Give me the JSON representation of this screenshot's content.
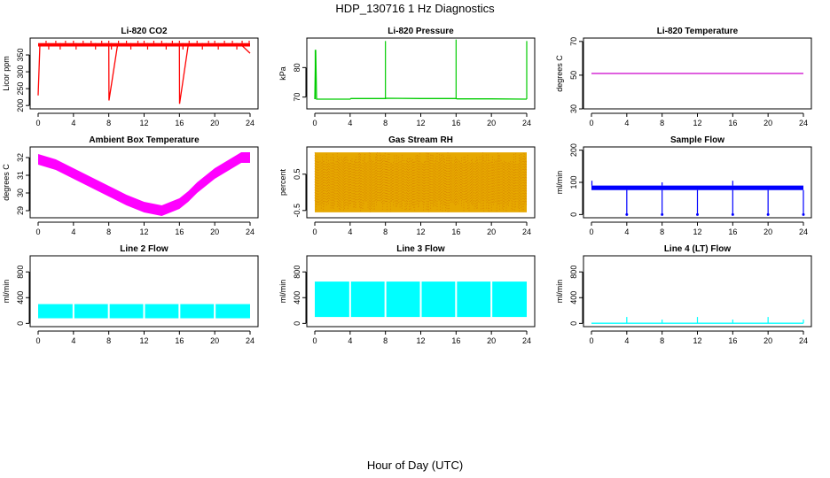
{
  "page": {
    "title": "HDP_130716  1 Hz Diagnostics",
    "xlabel": "Hour of Day (UTC)"
  },
  "chart_data": [
    {
      "type": "line",
      "title": "Li-820 CO2",
      "ylabel": "Licor ppm",
      "xlim": [
        0,
        24
      ],
      "ylim": [
        190,
        400
      ],
      "xticks": [
        0,
        4,
        8,
        12,
        16,
        20,
        24
      ],
      "yticks": [
        200,
        250,
        300,
        350
      ],
      "color": "#ff0000",
      "band": {
        "low": 375,
        "high": 385
      },
      "x": [
        0.0,
        0.2,
        1.0,
        2.0,
        3.0,
        4.0,
        5.0,
        6.0,
        7.0,
        8.0,
        8.02,
        9.0,
        10.0,
        11.0,
        12.0,
        13.0,
        14.0,
        15.0,
        16.0,
        16.02,
        17.0,
        18.0,
        19.0,
        20.0,
        21.0,
        22.0,
        23.0,
        24.0
      ],
      "y": [
        230,
        380,
        380,
        379,
        380,
        380,
        379,
        380,
        380,
        379,
        215,
        380,
        380,
        379,
        380,
        380,
        379,
        380,
        379,
        205,
        380,
        380,
        379,
        380,
        380,
        379,
        380,
        355
      ],
      "spikes_up": {
        "x": [
          0.9,
          1.2,
          2.0,
          2.5,
          3.1,
          4.0,
          4.3,
          5.1,
          6.0,
          6.5,
          7.2,
          8.0,
          8.3,
          9.1,
          10.0,
          10.5,
          11.3,
          12.0,
          12.4,
          13.1,
          14.0,
          14.5,
          15.2,
          16.0,
          16.4,
          17.1,
          18.0,
          18.6,
          19.3,
          20.0,
          20.4,
          21.1,
          22.0,
          22.5,
          23.1,
          23.9
        ],
        "y": [
          392,
          366,
          392,
          366,
          392,
          392,
          366,
          392,
          392,
          366,
          392,
          392,
          366,
          392,
          392,
          366,
          392,
          392,
          366,
          392,
          392,
          366,
          392,
          392,
          366,
          392,
          392,
          366,
          392,
          392,
          366,
          392,
          392,
          366,
          392,
          392
        ]
      }
    },
    {
      "type": "line",
      "title": "Li-820 Pressure",
      "ylabel": "kPa",
      "xlim": [
        0,
        24
      ],
      "ylim": [
        66,
        90
      ],
      "xticks": [
        0,
        4,
        8,
        12,
        16,
        20,
        24
      ],
      "yticks": [
        70,
        80
      ],
      "color": "#00cc00",
      "x": [
        0.0,
        0.1,
        0.2,
        4.0,
        4.1,
        8.0,
        8.1,
        12.0,
        16.0,
        16.1,
        20.0,
        23.9,
        24.0
      ],
      "y": [
        69.3,
        86,
        69.3,
        69.3,
        69.5,
        69.5,
        69.6,
        69.5,
        69.5,
        69.4,
        69.4,
        69.3,
        69.3
      ],
      "spikes_up": {
        "x": [
          0.05,
          8.0,
          16.0,
          24.0
        ],
        "y": [
          86,
          89,
          89.5,
          89
        ]
      }
    },
    {
      "type": "line",
      "title": "Li-820 Temperature",
      "ylabel": "degrees C",
      "xlim": [
        0,
        24
      ],
      "ylim": [
        30,
        72
      ],
      "xticks": [
        0,
        4,
        8,
        12,
        16,
        20,
        24
      ],
      "yticks": [
        30,
        50,
        70
      ],
      "color": "#cc00cc",
      "x": [
        0,
        24
      ],
      "y": [
        51,
        51
      ]
    },
    {
      "type": "line",
      "title": "Ambient Box Temperature",
      "ylabel": "degrees C",
      "xlim": [
        0,
        24
      ],
      "ylim": [
        28.6,
        32.6
      ],
      "xticks": [
        0,
        4,
        8,
        12,
        16,
        20,
        24
      ],
      "yticks": [
        29,
        30,
        31,
        32
      ],
      "color": "#ff00ff",
      "x": [
        0,
        2,
        4,
        6,
        8,
        10,
        12,
        14,
        16,
        17,
        18,
        20,
        22,
        23,
        24
      ],
      "y": [
        31.9,
        31.6,
        31.1,
        30.6,
        30.1,
        29.6,
        29.2,
        29.0,
        29.4,
        29.8,
        30.3,
        31.1,
        31.7,
        32.0,
        32.0
      ],
      "band": {
        "half_width": 0.3
      }
    },
    {
      "type": "scatter",
      "title": "Gas Stream RH",
      "ylabel": "percent",
      "xlim": [
        0,
        24
      ],
      "ylim": [
        -0.7,
        1.25
      ],
      "xticks": [
        0,
        4,
        8,
        12,
        16,
        20,
        24
      ],
      "yticks": [
        -0.5,
        0.5
      ],
      "color": "#e6a800",
      "outline": "#cc6600",
      "band": {
        "low": -0.55,
        "high": 1.1
      }
    },
    {
      "type": "line",
      "title": "Sample Flow",
      "ylabel": "ml/min",
      "xlim": [
        0,
        24
      ],
      "ylim": [
        -10,
        210
      ],
      "xticks": [
        0,
        4,
        8,
        12,
        16,
        20,
        24
      ],
      "yticks": [
        0,
        100,
        200
      ],
      "color": "#0000ff",
      "x": [
        0,
        24
      ],
      "y": [
        83,
        83
      ],
      "band": {
        "low": 76,
        "high": 90
      },
      "spikes_down": {
        "x": [
          4,
          8,
          12,
          16,
          20,
          24
        ],
        "y": [
          0,
          0,
          0,
          0,
          0,
          0
        ]
      },
      "spikes_up": {
        "x": [
          0.05,
          8.0,
          16.0
        ],
        "y": [
          105,
          100,
          105
        ]
      }
    },
    {
      "type": "area",
      "title": "Line 2 Flow",
      "ylabel": "ml/min",
      "xlim": [
        0,
        24
      ],
      "ylim": [
        -50,
        1050
      ],
      "xticks": [
        0,
        4,
        8,
        12,
        16,
        20,
        24
      ],
      "yticks": [
        0,
        400,
        800
      ],
      "color": "#00ffff",
      "band": {
        "low": 80,
        "high": 300
      },
      "gaps": [
        4,
        8,
        12,
        16,
        20
      ]
    },
    {
      "type": "area",
      "title": "Line 3 Flow",
      "ylabel": "ml/min",
      "xlim": [
        0,
        24
      ],
      "ylim": [
        -50,
        1050
      ],
      "xticks": [
        0,
        4,
        8,
        12,
        16,
        20,
        24
      ],
      "yticks": [
        0,
        400,
        800
      ],
      "color": "#00ffff",
      "band": {
        "low": 100,
        "high": 650
      },
      "gaps": [
        4,
        8,
        12,
        16,
        20
      ]
    },
    {
      "type": "line",
      "title": "Line 4 (LT) Flow",
      "ylabel": "ml/min",
      "xlim": [
        0,
        24
      ],
      "ylim": [
        -50,
        1050
      ],
      "xticks": [
        0,
        4,
        8,
        12,
        16,
        20,
        24
      ],
      "yticks": [
        0,
        400,
        800
      ],
      "color": "#00ffff",
      "x": [
        0,
        24
      ],
      "y": [
        2,
        2
      ],
      "spikes_up": {
        "x": [
          4,
          8,
          12,
          16,
          20,
          24
        ],
        "y": [
          100,
          60,
          100,
          60,
          100,
          60
        ]
      }
    }
  ]
}
